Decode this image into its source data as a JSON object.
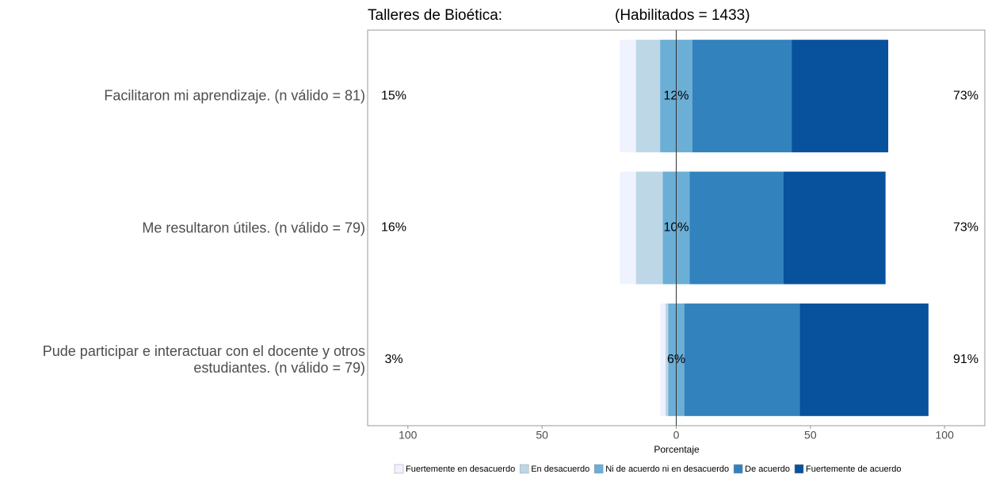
{
  "chart_data": {
    "type": "diverging_bar",
    "title": "Talleres de Bioética:",
    "subtitle": "(Habilitados = 1433)",
    "x_label": "Porcentaje",
    "categories": [
      "Facilitaron mi aprendizaje. (n válido = 81)",
      "Me resultaron útiles. (n válido = 79)",
      "Pude participar e interactuar con el docente y otros estudiantes. (n válido = 79)"
    ],
    "series": [
      {
        "name": "Fuertemente en desacuerdo",
        "color": "#eff3ff",
        "values": [
          6,
          6,
          2
        ]
      },
      {
        "name": "En desacuerdo",
        "color": "#bdd7e7",
        "values": [
          9,
          10,
          1
        ]
      },
      {
        "name": "Ni de acuerdo ni en desacuerdo",
        "color": "#6baed6",
        "values": [
          12,
          10,
          6
        ]
      },
      {
        "name": "De acuerdo",
        "color": "#3182bd",
        "values": [
          37,
          35,
          43
        ]
      },
      {
        "name": "Fuertemente de acuerdo",
        "color": "#08519c",
        "values": [
          36,
          38,
          48
        ]
      }
    ],
    "low_labels": [
      "15%",
      "16%",
      "3%"
    ],
    "neutral_labels": [
      "12%",
      "10%",
      "6%"
    ],
    "high_labels": [
      "73%",
      "73%",
      "91%"
    ],
    "xlim": [
      -115,
      115
    ],
    "xticks": [
      {
        "value": -100,
        "label": "100"
      },
      {
        "value": -50,
        "label": "50"
      },
      0,
      50,
      100
    ],
    "legend": "bottom"
  }
}
